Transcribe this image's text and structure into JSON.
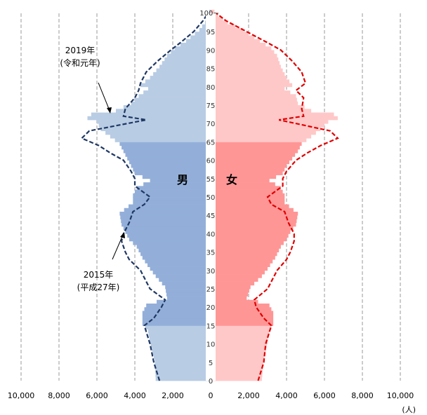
{
  "chart_data": {
    "type": "bar",
    "orientation": "horizontal",
    "subtype": "population-pyramid",
    "x_ticks": [
      "10,000",
      "8,000",
      "6,000",
      "4,000",
      "2,000",
      "0",
      "2,000",
      "4,000",
      "6,000",
      "8,000",
      "10,000"
    ],
    "x_unit": "(人)",
    "xlim": [
      -10000,
      10000
    ],
    "age_ticks": [
      0,
      5,
      10,
      15,
      20,
      25,
      30,
      35,
      40,
      45,
      50,
      55,
      60,
      65,
      70,
      75,
      80,
      85,
      90,
      95
    ],
    "age_top_label": "100~",
    "ylim": [
      0,
      100
    ],
    "grid": true,
    "gender_labels": {
      "male": "男",
      "female": "女"
    },
    "annotations": [
      {
        "text": [
          "2019年",
          "(令和元年)"
        ],
        "target": "bars"
      },
      {
        "text": [
          "2015年",
          "(平成27年)"
        ],
        "target": "dashed-line"
      }
    ],
    "colors": {
      "male_dark": "#93afd9",
      "male_light": "#b8cce4",
      "female_dark": "#ff9696",
      "female_light": "#ffc8c8",
      "male_line": "#1f3864",
      "female_line": "#e00000"
    },
    "series": [
      {
        "name": "男",
        "values": [
          [
            0,
            2900
          ],
          [
            5,
            2950
          ],
          [
            10,
            3200
          ],
          [
            13,
            3300
          ],
          [
            15,
            3600
          ],
          [
            18,
            3600
          ],
          [
            20,
            3400
          ],
          [
            22,
            2300
          ],
          [
            25,
            2400
          ],
          [
            28,
            2900
          ],
          [
            30,
            3200
          ],
          [
            33,
            3600
          ],
          [
            36,
            3900
          ],
          [
            38,
            4300
          ],
          [
            40,
            4500
          ],
          [
            42,
            4700
          ],
          [
            45,
            4800
          ],
          [
            48,
            4100
          ],
          [
            50,
            4100
          ],
          [
            52,
            3900
          ],
          [
            54,
            3200
          ],
          [
            56,
            4000
          ],
          [
            58,
            4200
          ],
          [
            60,
            4400
          ],
          [
            62,
            4600
          ],
          [
            64,
            4800
          ],
          [
            66,
            5300
          ],
          [
            68,
            5800
          ],
          [
            70,
            6000
          ],
          [
            71,
            6500
          ],
          [
            72,
            6300
          ],
          [
            73,
            5000
          ],
          [
            75,
            4200
          ],
          [
            77,
            3800
          ],
          [
            79,
            3300
          ],
          [
            80,
            3700
          ],
          [
            82,
            3200
          ],
          [
            85,
            2700
          ],
          [
            88,
            2300
          ],
          [
            90,
            1900
          ],
          [
            92,
            1300
          ],
          [
            95,
            600
          ],
          [
            97,
            300
          ],
          [
            99,
            150
          ],
          [
            100,
            80
          ]
        ]
      },
      {
        "name": "女",
        "values": [
          [
            0,
            2700
          ],
          [
            5,
            2800
          ],
          [
            10,
            3000
          ],
          [
            13,
            3100
          ],
          [
            15,
            3300
          ],
          [
            18,
            3300
          ],
          [
            20,
            3100
          ],
          [
            22,
            1900
          ],
          [
            25,
            2100
          ],
          [
            28,
            2700
          ],
          [
            30,
            3000
          ],
          [
            33,
            3400
          ],
          [
            36,
            3700
          ],
          [
            38,
            4000
          ],
          [
            40,
            4200
          ],
          [
            42,
            4500
          ],
          [
            45,
            4600
          ],
          [
            48,
            3900
          ],
          [
            50,
            3900
          ],
          [
            52,
            3700
          ],
          [
            54,
            3100
          ],
          [
            56,
            3800
          ],
          [
            58,
            4000
          ],
          [
            60,
            4300
          ],
          [
            62,
            4600
          ],
          [
            64,
            4800
          ],
          [
            66,
            5300
          ],
          [
            68,
            5800
          ],
          [
            70,
            6200
          ],
          [
            71,
            6700
          ],
          [
            72,
            6500
          ],
          [
            73,
            5300
          ],
          [
            75,
            4600
          ],
          [
            77,
            4500
          ],
          [
            79,
            3900
          ],
          [
            80,
            4300
          ],
          [
            82,
            4000
          ],
          [
            85,
            3700
          ],
          [
            88,
            3500
          ],
          [
            90,
            3200
          ],
          [
            92,
            2600
          ],
          [
            95,
            1700
          ],
          [
            97,
            900
          ],
          [
            99,
            400
          ],
          [
            100,
            200
          ]
        ]
      },
      {
        "name": "男 2015年",
        "style": "dashed",
        "values": [
          [
            0,
            2700
          ],
          [
            5,
            3000
          ],
          [
            10,
            3200
          ],
          [
            15,
            3500
          ],
          [
            17,
            3000
          ],
          [
            20,
            2600
          ],
          [
            22,
            2400
          ],
          [
            25,
            3200
          ],
          [
            28,
            3500
          ],
          [
            30,
            3700
          ],
          [
            33,
            4300
          ],
          [
            35,
            4500
          ],
          [
            38,
            4700
          ],
          [
            40,
            4600
          ],
          [
            43,
            4300
          ],
          [
            46,
            4100
          ],
          [
            48,
            3500
          ],
          [
            50,
            3200
          ],
          [
            53,
            4000
          ],
          [
            55,
            4000
          ],
          [
            57,
            4200
          ],
          [
            60,
            4600
          ],
          [
            62,
            5300
          ],
          [
            64,
            5900
          ],
          [
            66,
            6800
          ],
          [
            68,
            6400
          ],
          [
            70,
            4400
          ],
          [
            71,
            3400
          ],
          [
            72,
            4600
          ],
          [
            74,
            4500
          ],
          [
            77,
            4000
          ],
          [
            79,
            3800
          ],
          [
            81,
            3700
          ],
          [
            84,
            3400
          ],
          [
            87,
            2800
          ],
          [
            90,
            2100
          ],
          [
            92,
            1600
          ],
          [
            95,
            900
          ],
          [
            98,
            400
          ],
          [
            100,
            150
          ]
        ]
      },
      {
        "name": "女 2015年",
        "style": "dashed",
        "values": [
          [
            0,
            2500
          ],
          [
            5,
            2800
          ],
          [
            10,
            2900
          ],
          [
            15,
            3200
          ],
          [
            17,
            2800
          ],
          [
            20,
            2400
          ],
          [
            22,
            2300
          ],
          [
            25,
            3000
          ],
          [
            28,
            3300
          ],
          [
            30,
            3500
          ],
          [
            33,
            4000
          ],
          [
            35,
            4200
          ],
          [
            38,
            4400
          ],
          [
            40,
            4400
          ],
          [
            43,
            4100
          ],
          [
            46,
            3900
          ],
          [
            48,
            3200
          ],
          [
            50,
            3000
          ],
          [
            53,
            3800
          ],
          [
            55,
            3800
          ],
          [
            57,
            4000
          ],
          [
            60,
            4500
          ],
          [
            62,
            5100
          ],
          [
            64,
            5800
          ],
          [
            66,
            6700
          ],
          [
            68,
            6300
          ],
          [
            70,
            4500
          ],
          [
            71,
            3600
          ],
          [
            72,
            4900
          ],
          [
            74,
            4800
          ],
          [
            77,
            4900
          ],
          [
            79,
            4500
          ],
          [
            81,
            5000
          ],
          [
            84,
            4800
          ],
          [
            87,
            4300
          ],
          [
            90,
            3700
          ],
          [
            92,
            3000
          ],
          [
            95,
            1900
          ],
          [
            98,
            800
          ],
          [
            100,
            300
          ]
        ]
      }
    ]
  }
}
